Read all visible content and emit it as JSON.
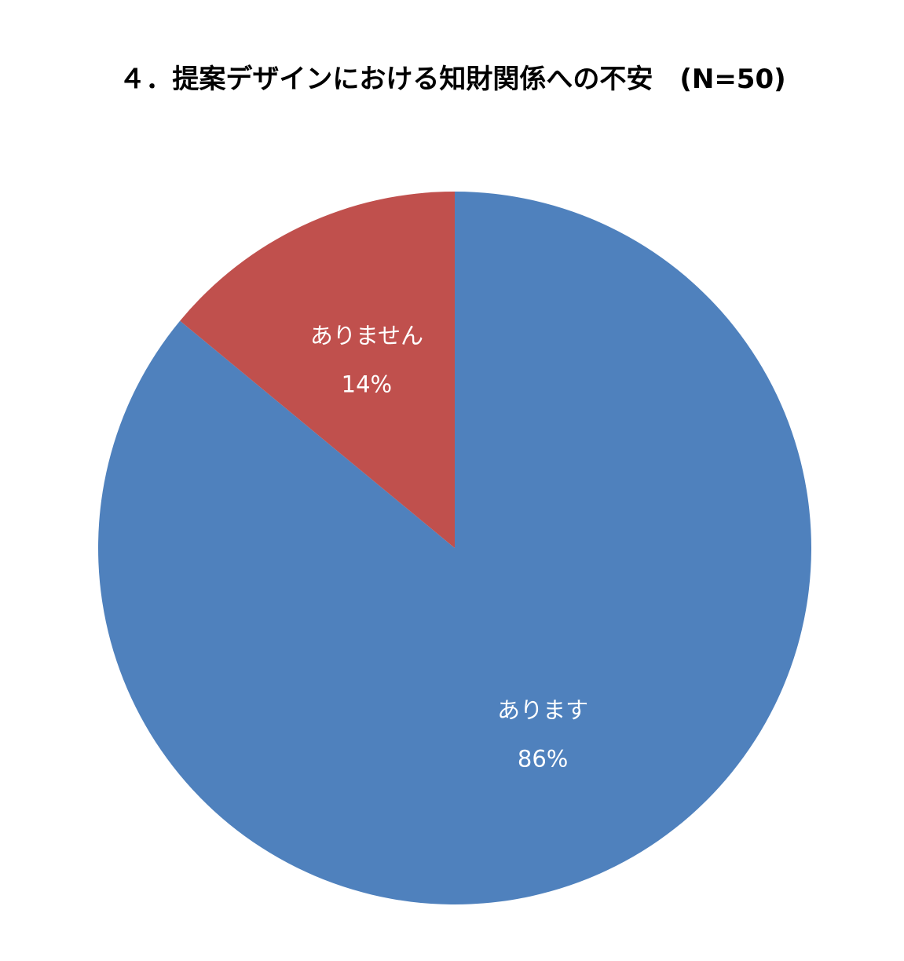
{
  "chart_data": {
    "type": "pie",
    "title": "４．提案デザインにおける知財関係への不安　(N=50)",
    "categories": [
      "あります",
      "ありません"
    ],
    "values": [
      86,
      14
    ],
    "value_labels": [
      "86%",
      "14%"
    ],
    "colors": [
      "#4f81bd",
      "#c0504d"
    ]
  }
}
